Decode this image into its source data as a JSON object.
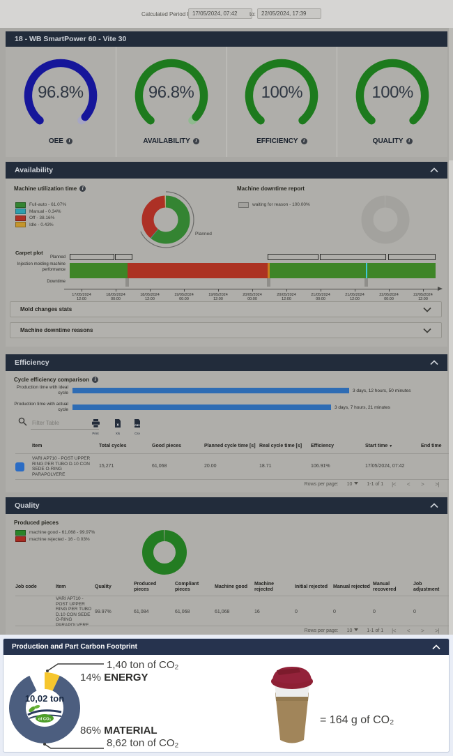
{
  "period": {
    "label": "Calculated Period From:",
    "from": "17/05/2024, 07:42",
    "to_label": "to:",
    "to": "22/05/2024, 17:39"
  },
  "machine": {
    "title": "18 - WB SmartPower 60 - Vite 30",
    "gauges": [
      {
        "label": "OEE",
        "value": "96.8%",
        "percent": 96.8,
        "color": "#16169a",
        "track": "#a6a6c4"
      },
      {
        "label": "AVAILABILITY",
        "value": "96.8%",
        "percent": 96.8,
        "color": "#1d7a1d",
        "track": "#8fba8f"
      },
      {
        "label": "EFFICIENCY",
        "value": "100%",
        "percent": 100,
        "color": "#1d7a1d",
        "track": "#8fba8f"
      },
      {
        "label": "QUALITY",
        "value": "100%",
        "percent": 100,
        "color": "#1d7a1d",
        "track": "#8fba8f"
      }
    ]
  },
  "availability": {
    "title": "Availability",
    "utilization": {
      "title": "Machine utilization time",
      "legend": [
        {
          "label": "Full-auto - 61.07%",
          "color": "#348432"
        },
        {
          "label": "Manual - 0.34%",
          "color": "#2f9fae"
        },
        {
          "label": "Off - 38.16%",
          "color": "#ad3025"
        },
        {
          "label": "Idle - 0.43%",
          "color": "#c4952d"
        }
      ],
      "segments": [
        {
          "value": 61.07,
          "color": "#348432"
        },
        {
          "value": 0.34,
          "color": "#2f9fae"
        },
        {
          "value": 38.16,
          "color": "#ad3025"
        },
        {
          "value": 0.43,
          "color": "#c4952d"
        }
      ],
      "ring_label": "Planned"
    },
    "downtime": {
      "title": "Machine downtime report",
      "legend": [
        {
          "label": "waiting for reason - 100.00%",
          "color": "#a3a29e"
        }
      ],
      "segments": [
        {
          "value": 100,
          "color": "#a3a29e"
        }
      ]
    },
    "carpet": {
      "title": "Carpet plot",
      "row_labels": [
        "Planned",
        "Injection molding machine",
        "performance",
        "Downtime"
      ],
      "planned_boxes": [
        [
          0,
          0.122
        ],
        [
          0.124,
          0.171
        ],
        [
          0.541,
          0.68
        ],
        [
          0.684,
          0.864
        ],
        [
          0.87,
          1
        ]
      ],
      "performance": [
        {
          "from": 0,
          "to": 0.158,
          "color": "#3e8527"
        },
        {
          "from": 0.158,
          "to": 0.543,
          "color": "#ac3222"
        },
        {
          "from": 0.543,
          "to": 1,
          "color": "#3e8527"
        }
      ],
      "markers": [
        {
          "at": 0.541,
          "color": "#c87f1e"
        },
        {
          "at": 0.809,
          "color": "#3ec8da"
        }
      ],
      "downtime_marks": [
        0.153,
        0.539,
        0.806
      ],
      "ticks": [
        [
          "17/05/2024",
          "12:00"
        ],
        [
          "18/05/2024",
          "00:00"
        ],
        [
          "18/05/2024",
          "12:00"
        ],
        [
          "19/05/2024",
          "00:00"
        ],
        [
          "19/05/2024",
          "12:00"
        ],
        [
          "20/05/2024",
          "00:00"
        ],
        [
          "20/05/2024",
          "12:00"
        ],
        [
          "21/05/2024",
          "00:00"
        ],
        [
          "21/05/2024",
          "12:00"
        ],
        [
          "22/05/2024",
          "00:00"
        ],
        [
          "22/05/2024",
          "12:00"
        ]
      ]
    },
    "accordions": [
      {
        "label": "Mold changes stats"
      },
      {
        "label": "Machine downtime reasons"
      }
    ]
  },
  "efficiency": {
    "title": "Efficiency",
    "comparison": {
      "title": "Cycle efficiency comparison",
      "bars": [
        {
          "label_line1": "Production time with ideal",
          "label_line2": "cycle",
          "duration": "3 days, 12 hours, 50 minutes",
          "minutes": 5090
        },
        {
          "label_line1": "Production time with actual",
          "label_line2": "cycle",
          "duration": "3 days, 7 hours, 21 minutes",
          "minutes": 4761
        }
      ],
      "bar_color": "#2e6cb4"
    },
    "toolbar": {
      "filter_placeholder": "Filter Table",
      "export_icons": [
        {
          "label": "Print"
        },
        {
          "label": "Xls"
        },
        {
          "label": "Csv"
        }
      ]
    },
    "table": {
      "headers": [
        "Item",
        "Total cycles",
        "Good pieces",
        "Planned cycle time [s]",
        "Real cycle time [s]",
        "Efficiency",
        "Start time",
        "End time"
      ],
      "sort_indicator": "▼",
      "row": {
        "item": "VARI AP710 - POST UPPER RING PER TUBO D.10 CON SEDE O-RING PARAPOLVERE",
        "total_cycles": "15,271",
        "good_pieces": "61,068",
        "planned_cycle_time": "20.00",
        "real_cycle_time": "18.71",
        "efficiency": "106.91%",
        "start_time": "17/05/2024, 07:42",
        "end_time": ""
      },
      "pagination": {
        "label": "Rows per page:",
        "value": "10",
        "range": "1-1 of 1",
        "nav": [
          "|<",
          "<",
          ">",
          ">|"
        ]
      }
    }
  },
  "quality": {
    "title": "Quality",
    "produced_title": "Produced pieces",
    "legend": [
      {
        "label": "machine good - 61,068 - 99.97%",
        "color": "#2a8428"
      },
      {
        "label": "machine rejected - 16 - 0.03%",
        "color": "#a92a20"
      }
    ],
    "segments": [
      {
        "value": 99.97,
        "color": "#237c22"
      },
      {
        "value": 0.03,
        "color": "#a92a20"
      }
    ],
    "table": {
      "headers": [
        "Job code",
        "Item",
        "Quality",
        "Produced pieces",
        "Compliant pieces",
        "Machine good",
        "Machine rejected",
        "Initial rejected",
        "Manual rejected",
        "Manual recovered",
        "Job adjustment"
      ],
      "row": {
        "job_code": "",
        "item": "VARI AP710 - POST UPPER RING PER TUBO D.10 CON SEDE O-RING PARAPOLVERE",
        "quality": "99.97%",
        "produced": "61,084",
        "compliant": "61,068",
        "machine_good": "61,068",
        "machine_rejected": "16",
        "initial_rejected": "0",
        "manual_rejected": "0",
        "manual_recovered": "0",
        "job_adjustment": "0"
      },
      "pagination": {
        "label": "Rows per page:",
        "value": "10",
        "range": "1-1 of 1",
        "nav": [
          "|<",
          "<",
          ">",
          ">|"
        ]
      }
    }
  },
  "carbon": {
    "title": "Production and Part Carbon Footprint",
    "donut": {
      "segments": [
        {
          "value": 14,
          "color": "#f6c62e"
        },
        {
          "value": 86,
          "color": "#4c5e7f"
        }
      ],
      "start": -7,
      "center_value": "10,02 ton",
      "center_unit": "of CO₂"
    },
    "energy_value": "1,40 ton of CO₂",
    "energy_pct": "14%",
    "energy_label": "ENERGY",
    "material_pct": "86%",
    "material_label": "MATERIAL",
    "material_value": "8,62 ton of CO₂",
    "equivalence": "= 164 g of CO₂"
  }
}
